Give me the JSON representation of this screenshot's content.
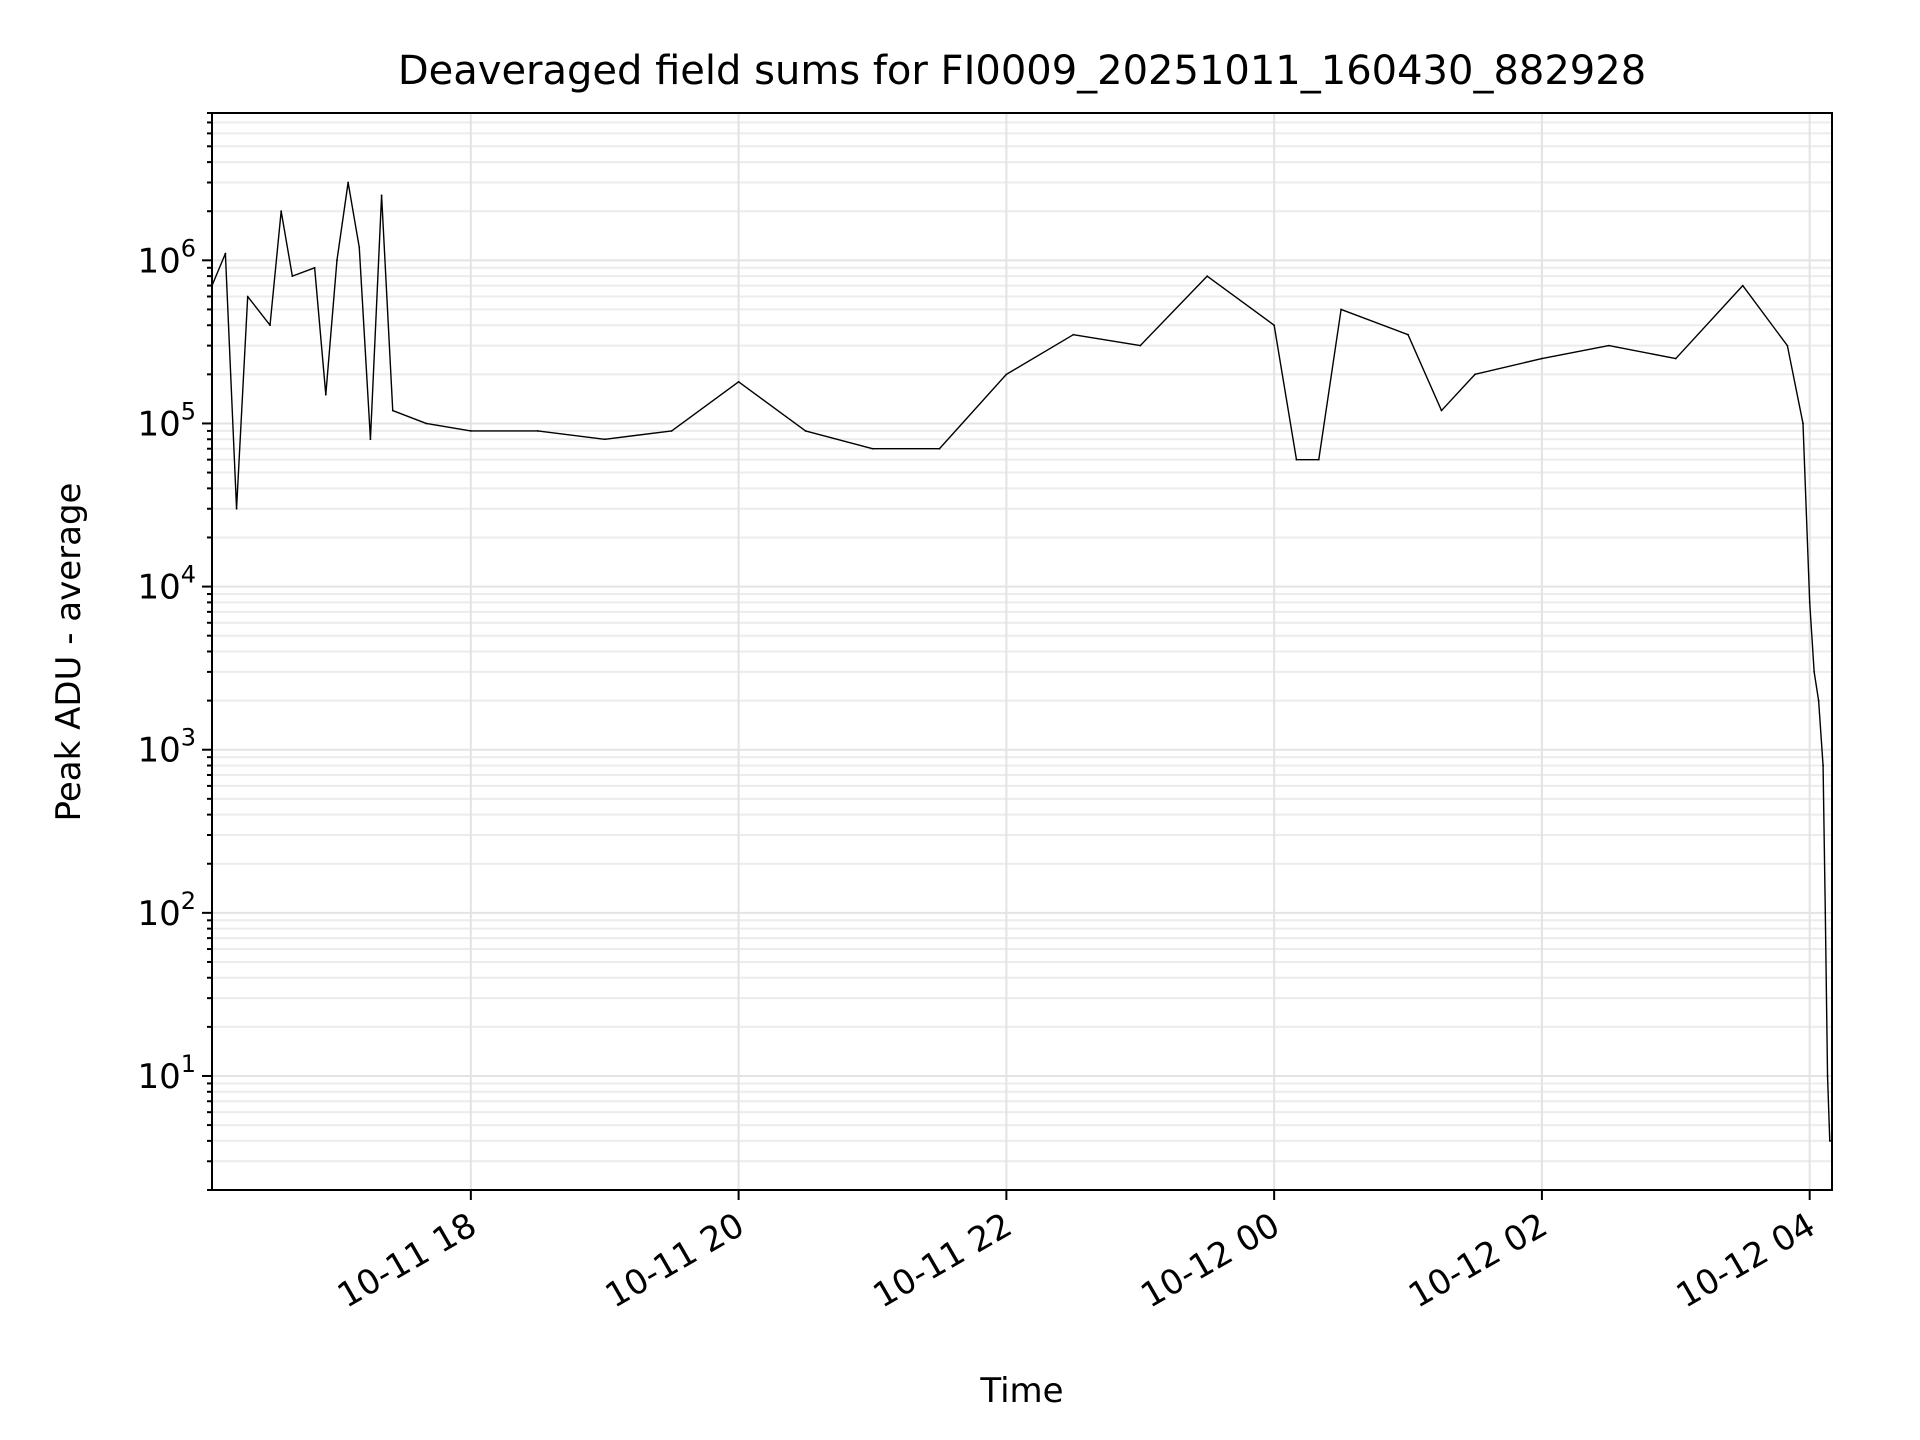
{
  "chart_data": {
    "type": "line",
    "title": "Deaveraged field sums for FI0009_20251011_160430_882928",
    "xlabel": "Time",
    "ylabel": "Peak ADU - average",
    "yscale": "log",
    "ylim": [
      2,
      8000000
    ],
    "xlim": [
      "2025-10-11 16:04",
      "2025-10-12 04:10"
    ],
    "grid": true,
    "grid_minor": true,
    "x_tick_labels": [
      "10-11 18",
      "10-11 20",
      "10-11 22",
      "10-12 00",
      "10-12 02",
      "10-12 04"
    ],
    "x_ticks": [
      "2025-10-11 18:00",
      "2025-10-11 20:00",
      "2025-10-11 22:00",
      "2025-10-12 00:00",
      "2025-10-12 02:00",
      "2025-10-12 04:00"
    ],
    "y_tick_labels": [
      {
        "base": "10",
        "exp": "1"
      },
      {
        "base": "10",
        "exp": "2"
      },
      {
        "base": "10",
        "exp": "3"
      },
      {
        "base": "10",
        "exp": "4"
      },
      {
        "base": "10",
        "exp": "5"
      },
      {
        "base": "10",
        "exp": "6"
      }
    ],
    "series": [
      {
        "color": "#000000",
        "points": [
          [
            "2025-10-11 16:04",
            700000
          ],
          [
            "2025-10-11 16:10",
            1100000
          ],
          [
            "2025-10-11 16:15",
            30000
          ],
          [
            "2025-10-11 16:20",
            600000
          ],
          [
            "2025-10-11 16:30",
            400000
          ],
          [
            "2025-10-11 16:35",
            2000000
          ],
          [
            "2025-10-11 16:40",
            800000
          ],
          [
            "2025-10-11 16:50",
            900000
          ],
          [
            "2025-10-11 16:55",
            150000
          ],
          [
            "2025-10-11 17:00",
            1000000
          ],
          [
            "2025-10-11 17:05",
            3000000
          ],
          [
            "2025-10-11 17:10",
            1200000
          ],
          [
            "2025-10-11 17:15",
            80000
          ],
          [
            "2025-10-11 17:20",
            2500000
          ],
          [
            "2025-10-11 17:25",
            120000
          ],
          [
            "2025-10-11 17:40",
            100000
          ],
          [
            "2025-10-11 18:00",
            90000
          ],
          [
            "2025-10-11 18:30",
            90000
          ],
          [
            "2025-10-11 19:00",
            80000
          ],
          [
            "2025-10-11 19:30",
            90000
          ],
          [
            "2025-10-11 20:00",
            180000
          ],
          [
            "2025-10-11 20:30",
            90000
          ],
          [
            "2025-10-11 21:00",
            70000
          ],
          [
            "2025-10-11 21:30",
            70000
          ],
          [
            "2025-10-11 22:00",
            200000
          ],
          [
            "2025-10-11 22:30",
            350000
          ],
          [
            "2025-10-11 23:00",
            300000
          ],
          [
            "2025-10-11 23:30",
            800000
          ],
          [
            "2025-10-12 00:00",
            400000
          ],
          [
            "2025-10-12 00:10",
            60000
          ],
          [
            "2025-10-12 00:20",
            60000
          ],
          [
            "2025-10-12 00:30",
            500000
          ],
          [
            "2025-10-12 01:00",
            350000
          ],
          [
            "2025-10-12 01:15",
            120000
          ],
          [
            "2025-10-12 01:30",
            200000
          ],
          [
            "2025-10-12 02:00",
            250000
          ],
          [
            "2025-10-12 02:30",
            300000
          ],
          [
            "2025-10-12 03:00",
            250000
          ],
          [
            "2025-10-12 03:30",
            700000
          ],
          [
            "2025-10-12 03:50",
            300000
          ],
          [
            "2025-10-12 03:57",
            100000
          ],
          [
            "2025-10-12 04:00",
            8000
          ],
          [
            "2025-10-12 04:02",
            3000
          ],
          [
            "2025-10-12 04:04",
            2000
          ],
          [
            "2025-10-12 04:06",
            800
          ],
          [
            "2025-10-12 04:07",
            100
          ],
          [
            "2025-10-12 04:08",
            10
          ],
          [
            "2025-10-12 04:09",
            4
          ],
          [
            "2025-10-12 04:10",
            4
          ]
        ]
      }
    ]
  }
}
